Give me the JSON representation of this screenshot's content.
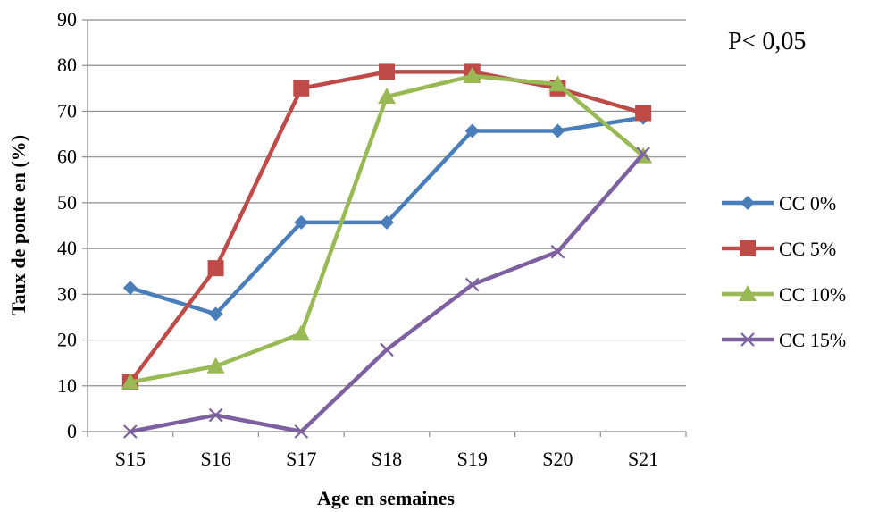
{
  "chart_data": {
    "type": "line",
    "title": "",
    "xlabel": "Age en semaines",
    "ylabel": "Taux de ponte en (%)",
    "ylim": [
      0,
      90
    ],
    "yticks": [
      0,
      10,
      20,
      30,
      40,
      50,
      60,
      70,
      80,
      90
    ],
    "grid": true,
    "legend_position": "right",
    "categories": [
      "S15",
      "S16",
      "S17",
      "S18",
      "S19",
      "S20",
      "S21"
    ],
    "annotation": "P< 0,05",
    "series": [
      {
        "name": "CC 0%",
        "color": "#4a7ebb",
        "marker": "diamond",
        "values": [
          31.4,
          25.7,
          45.7,
          45.7,
          65.7,
          65.7,
          68.6
        ]
      },
      {
        "name": "CC 5%",
        "color": "#be4b48",
        "marker": "square",
        "values": [
          10.8,
          35.7,
          75.0,
          78.6,
          78.6,
          75.0,
          69.6
        ]
      },
      {
        "name": "CC 10%",
        "color": "#98b954",
        "marker": "triangle",
        "values": [
          10.8,
          14.3,
          21.4,
          73.2,
          77.7,
          75.9,
          60.2
        ]
      },
      {
        "name": "CC 15%",
        "color": "#7d60a0",
        "marker": "x",
        "values": [
          0,
          3.6,
          0,
          17.9,
          32.1,
          39.3,
          60.7
        ]
      }
    ]
  }
}
